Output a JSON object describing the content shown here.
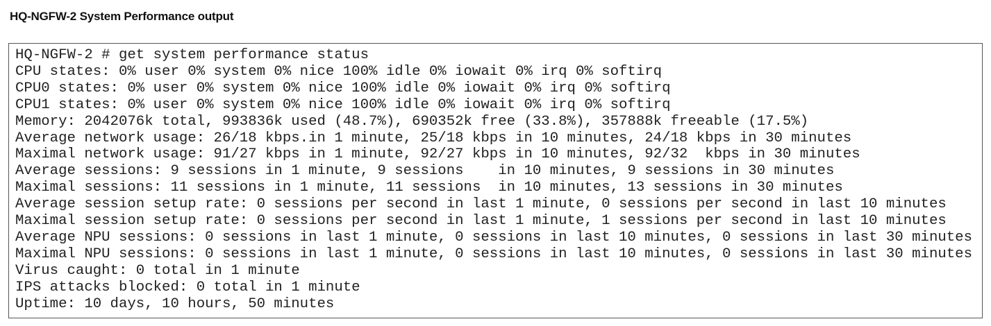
{
  "title": "HQ-NGFW-2 System Performance output",
  "terminal": {
    "lines": [
      "HQ-NGFW-2 # get system performance status",
      "CPU states: 0% user 0% system 0% nice 100% idle 0% iowait 0% irq 0% softirq",
      "CPU0 states: 0% user 0% system 0% nice 100% idle 0% iowait 0% irq 0% softirq",
      "CPU1 states: 0% user 0% system 0% nice 100% idle 0% iowait 0% irq 0% softirq",
      "Memory: 2042076k total, 993836k used (48.7%), 690352k free (33.8%), 357888k freeable (17.5%)",
      "Average network usage: 26/18 kbps.in 1 minute, 25/18 kbps in 10 minutes, 24/18 kbps in 30 minutes",
      "Maximal network usage: 91/27 kbps in 1 minute, 92/27 kbps in 10 minutes, 92/32  kbps in 30 minutes",
      "Average sessions: 9 sessions in 1 minute, 9 sessions    in 10 minutes, 9 sessions in 30 minutes",
      "Maximal sessions: 11 sessions in 1 minute, 11 sessions  in 10 minutes, 13 sessions in 30 minutes",
      "Average session setup rate: 0 sessions per second in last 1 minute, 0 sessions per second in last 10 minutes",
      "Maximal session setup rate: 0 sessions per second in last 1 minute, 1 sessions per second in last 10 minutes",
      "Average NPU sessions: 0 sessions in last 1 minute, 0 sessions in last 10 minutes, 0 sessions in last 30 minutes",
      "Maximal NPU sessions: 0 sessions in last 1 minute, 0 sessions in last 10 minutes, 0 sessions in last 30 minutes",
      "Virus caught: 0 total in 1 minute",
      "IPS attacks blocked: 0 total in 1 minute",
      "Uptime: 10 days, 10 hours, 50 minutes"
    ]
  }
}
